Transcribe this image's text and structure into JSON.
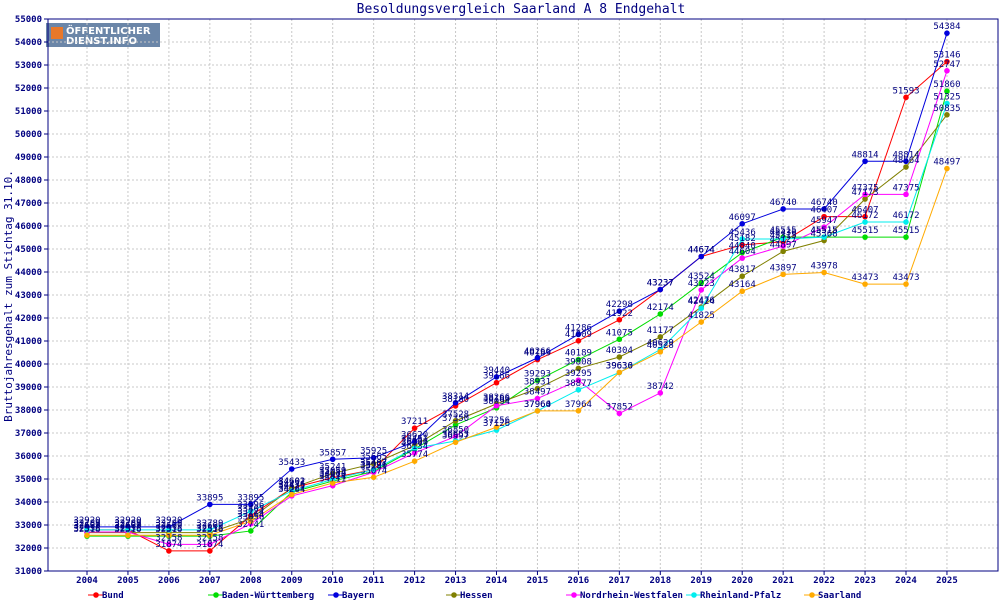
{
  "chart_data": {
    "type": "line",
    "title": "Besoldungsvergleich Saarland A 8 Endgehalt",
    "xlabel": "",
    "ylabel": "Bruttojahresgehalt zum Stichtag 31.10.",
    "logo": {
      "line1": "ÖFFENTLICHER",
      "line2": "DIENST.INFO"
    },
    "categories": [
      "2004",
      "2005",
      "2006",
      "2007",
      "2008",
      "2009",
      "2010",
      "2011",
      "2012",
      "2013",
      "2014",
      "2015",
      "2016",
      "2017",
      "2018",
      "2019",
      "2020",
      "2021",
      "2022",
      "2023",
      "2024",
      "2025"
    ],
    "ylim": [
      31000,
      55000
    ],
    "yticks": [
      31000,
      32000,
      33000,
      34000,
      35000,
      36000,
      37000,
      38000,
      39000,
      40000,
      41000,
      42000,
      43000,
      44000,
      45000,
      46000,
      47000,
      48000,
      49000,
      50000,
      51000,
      52000,
      53000,
      54000,
      55000
    ],
    "grid": true,
    "legend_position": "bottom",
    "series": [
      {
        "name": "Bund",
        "color": "#ff0000",
        "values": [
          32787,
          32787,
          31874,
          31874,
          33405,
          34601,
          35059,
          35407,
          37211,
          38180,
          39186,
          40189,
          41009,
          41922,
          43237,
          44674,
          45182,
          45315,
          46407,
          46407,
          51593,
          53146
        ]
      },
      {
        "name": "Baden-Württemberg",
        "color": "#00dd00",
        "values": [
          32516,
          32516,
          32516,
          32516,
          32741,
          34425,
          34910,
          35326,
          36307,
          37350,
          38094,
          39293,
          40189,
          41075,
          42174,
          43524,
          44840,
          45515,
          45515,
          45515,
          45515,
          51860
        ]
      },
      {
        "name": "Bayern",
        "color": "#0000dd",
        "values": [
          32920,
          32920,
          32920,
          33895,
          33895,
          35433,
          35857,
          35925,
          36620,
          38314,
          39440,
          40266,
          41286,
          42298,
          43237,
          44674,
          46097,
          46740,
          46740,
          48814,
          48814,
          54384
        ]
      },
      {
        "name": "Hessen",
        "color": "#808000",
        "values": [
          32669,
          32669,
          32669,
          32669,
          33274,
          34602,
          35241,
          35665,
          36451,
          37528,
          38266,
          38931,
          39808,
          40304,
          41177,
          42476,
          43817,
          44897,
          45368,
          47173,
          48564,
          50835
        ]
      },
      {
        "name": "Nordrhein-Westfalen",
        "color": "#ff00ff",
        "values": [
          32693,
          32693,
          32158,
          32158,
          33056,
          34264,
          34711,
          35291,
          36134,
          36850,
          38186,
          38497,
          39295,
          37852,
          38742,
          43223,
          44604,
          45127,
          45947,
          47375,
          47375,
          52747
        ]
      },
      {
        "name": "Rheinland-Pfalz",
        "color": "#00eeee",
        "values": [
          32789,
          32789,
          32789,
          32789,
          33596,
          34476,
          34984,
          35407,
          36336,
          36653,
          37126,
          37964,
          38877,
          39630,
          40629,
          42424,
          45436,
          45436,
          45515,
          46172,
          46172,
          51325
        ]
      },
      {
        "name": "Saarland",
        "color": "#ffaa00",
        "values": [
          32555,
          32555,
          32555,
          32555,
          33164,
          34327,
          34824,
          35074,
          35774,
          36597,
          37256,
          37960,
          37964,
          39636,
          40528,
          41825,
          43164,
          43897,
          43978,
          43473,
          43473,
          48497
        ]
      }
    ]
  }
}
